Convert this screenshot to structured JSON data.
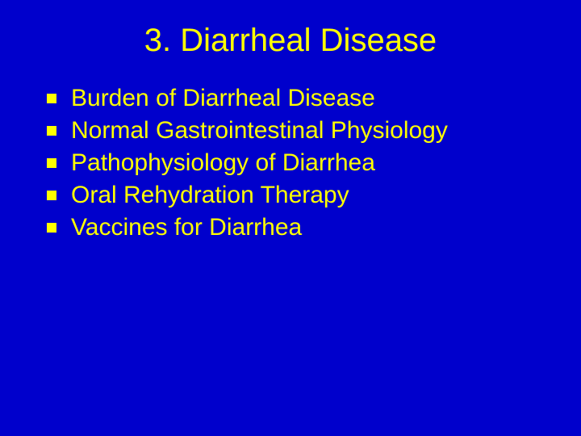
{
  "slide": {
    "title": "3. Diarrheal Disease",
    "title_color": "#ffff00",
    "title_fontsize": 40,
    "background_color": "#0000cc",
    "bullets": [
      {
        "text": "Burden of Diarrheal Disease"
      },
      {
        "text": "Normal Gastrointestinal Physiology"
      },
      {
        "text": "Pathophysiology of Diarrhea"
      },
      {
        "text": "Oral Rehydration Therapy"
      },
      {
        "text": "Vaccines for Diarrhea"
      }
    ],
    "bullet_text_color": "#ffff00",
    "bullet_marker_color": "#ffff00",
    "bullet_fontsize": 30,
    "font_family": "Verdana"
  }
}
